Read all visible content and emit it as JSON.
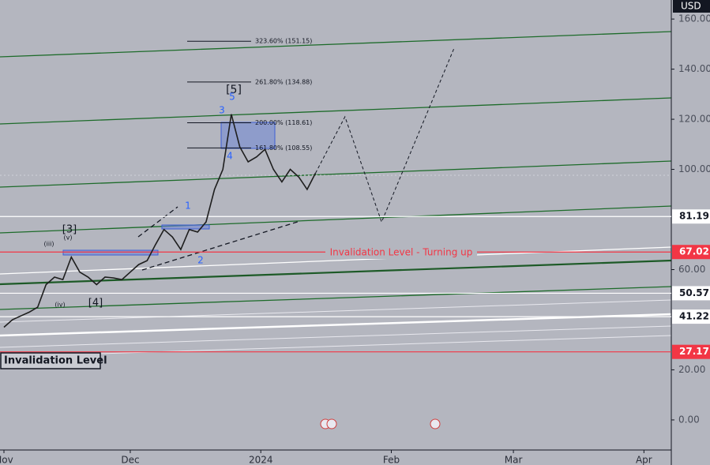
{
  "chart_data": {
    "type": "line",
    "currency": "USD",
    "xlim": [
      -0.94,
      158.5
    ],
    "xticks": [
      {
        "value": 0,
        "label": "Nov"
      },
      {
        "value": 30,
        "label": "Dec"
      },
      {
        "value": 61,
        "label": "2024"
      },
      {
        "value": 92,
        "label": "Feb"
      },
      {
        "value": 121,
        "label": "Mar"
      },
      {
        "value": 152,
        "label": "Apr"
      }
    ],
    "ylim": [
      -12,
      167.6
    ],
    "yticks": [
      {
        "value": 0,
        "label": "0.00"
      },
      {
        "value": 20,
        "label": "20.00"
      },
      {
        "value": 60,
        "label": "60.00"
      },
      {
        "value": 100,
        "label": "100.00"
      },
      {
        "value": 120,
        "label": "120.00"
      },
      {
        "value": 140,
        "label": "140.00"
      },
      {
        "value": 160,
        "label": "160.00"
      }
    ],
    "series": [
      {
        "color": "#1e1e1e",
        "x": [
          0,
          2,
          4,
          6,
          8,
          10,
          12,
          14,
          16,
          18,
          20,
          22,
          24,
          26,
          28,
          30,
          32,
          34,
          36,
          38,
          40,
          42,
          44,
          46,
          48,
          50,
          52,
          54,
          56,
          58,
          60,
          62,
          64,
          66,
          68,
          70,
          72,
          74
        ],
        "values": [
          37,
          40,
          41.5,
          43,
          45,
          54,
          57,
          56,
          65,
          59,
          57,
          54,
          57,
          56.7,
          56,
          59,
          62,
          63.6,
          70,
          76,
          73,
          68,
          76,
          75,
          79,
          92,
          100,
          122,
          109,
          103,
          105,
          108,
          100,
          95,
          100,
          97,
          92,
          98.5
        ]
      }
    ],
    "projection": {
      "x": [
        74,
        81,
        89.7,
        107
      ],
      "values": [
        98.5,
        121,
        79,
        148.7
      ]
    },
    "levels": [
      {
        "value": 81.19,
        "color": "#ffffff"
      },
      {
        "value": 67.02,
        "color": "#f23645"
      },
      {
        "value": 50.57,
        "color": "#ffffff"
      },
      {
        "value": 41.22,
        "color": "#ffffff"
      },
      {
        "value": 27.17,
        "color": "#f23645"
      }
    ],
    "fib": [
      {
        "label": "323.60% (151.15)",
        "value": 151.15
      },
      {
        "label": "261.80% (134.88)",
        "value": 134.88
      },
      {
        "label": "200.00% (118.61)",
        "value": 118.61
      },
      {
        "label": "161.80% (108.55)",
        "value": 108.55
      }
    ],
    "annotations": [
      "Invalidation Level - Turning up",
      "Invalidation Level",
      "[5]",
      "[3]",
      "[4]",
      "(v)",
      "(iii)",
      "(iv)",
      "3",
      "5",
      "4",
      "1",
      "2"
    ]
  }
}
